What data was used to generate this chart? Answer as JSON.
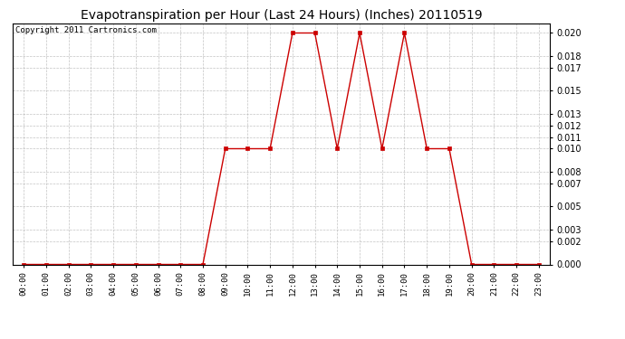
{
  "title": "Evapotranspiration per Hour (Last 24 Hours) (Inches) 20110519",
  "copyright": "Copyright 2011 Cartronics.com",
  "hours": [
    "00:00",
    "01:00",
    "02:00",
    "03:00",
    "04:00",
    "05:00",
    "06:00",
    "07:00",
    "08:00",
    "09:00",
    "10:00",
    "11:00",
    "12:00",
    "13:00",
    "14:00",
    "15:00",
    "16:00",
    "17:00",
    "18:00",
    "19:00",
    "20:00",
    "21:00",
    "22:00",
    "23:00"
  ],
  "values": [
    0.0,
    0.0,
    0.0,
    0.0,
    0.0,
    0.0,
    0.0,
    0.0,
    0.0,
    0.01,
    0.01,
    0.01,
    0.02,
    0.02,
    0.01,
    0.02,
    0.01,
    0.02,
    0.01,
    0.01,
    0.0,
    0.0,
    0.0,
    0.0
  ],
  "line_color": "#cc0000",
  "marker_color": "#cc0000",
  "background_color": "#ffffff",
  "plot_bg_color": "#ffffff",
  "grid_color": "#aaaaaa",
  "title_fontsize": 10,
  "copyright_fontsize": 6.5,
  "ylim": [
    0.0,
    0.0208
  ],
  "yticks": [
    0.0,
    0.002,
    0.003,
    0.005,
    0.007,
    0.008,
    0.01,
    0.011,
    0.012,
    0.013,
    0.015,
    0.017,
    0.018,
    0.02
  ]
}
